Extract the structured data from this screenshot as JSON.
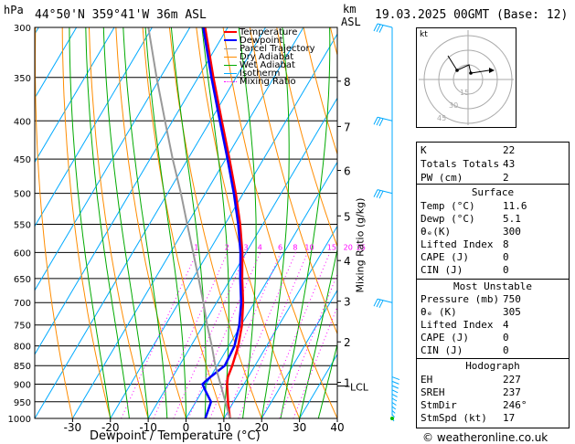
{
  "header": {
    "hpa_label": "hPa",
    "location": "44°50'N  359°41'W  36m  ASL",
    "km_label": "km",
    "asl_label": "ASL",
    "datetime": "19.03.2025  00GMT  (Base: 12)"
  },
  "legend": [
    {
      "label": "Temperature",
      "color": "#ff0000"
    },
    {
      "label": "Dewpoint",
      "color": "#0000ff"
    },
    {
      "label": "Parcel Trajectory",
      "color": "#999999"
    },
    {
      "label": "Dry Adiabat",
      "color": "#ff8c00"
    },
    {
      "label": "Wet Adiabat",
      "color": "#00aa00"
    },
    {
      "label": "Isotherm",
      "color": "#00aaff"
    },
    {
      "label": "Mixing Ratio",
      "color": "#ff00ff"
    }
  ],
  "chart_data": {
    "type": "line",
    "title": "",
    "xlabel": "Dewpoint / Temperature (°C)",
    "ylabel": "",
    "right_label": "Mixing Ratio (g/kg)",
    "xlim": [
      -40,
      40
    ],
    "ylim_pressure": [
      1000,
      300
    ],
    "x_ticks": [
      -30,
      -20,
      -10,
      0,
      10,
      20,
      30,
      40
    ],
    "pressure_ticks": [
      300,
      350,
      400,
      450,
      500,
      550,
      600,
      650,
      700,
      750,
      800,
      850,
      900,
      950,
      1000
    ],
    "km_ticks": [
      {
        "label": "8",
        "p": 354
      },
      {
        "label": "7",
        "p": 407
      },
      {
        "label": "6",
        "p": 466
      },
      {
        "label": "5",
        "p": 536
      },
      {
        "label": "4",
        "p": 615
      },
      {
        "label": "3",
        "p": 697
      },
      {
        "label": "2",
        "p": 790
      },
      {
        "label": "1",
        "p": 895
      }
    ],
    "lcl_label": "LCL",
    "lcl_p": 905,
    "mixing_ratio_labels": [
      "1",
      "2",
      "3",
      "4",
      "6",
      "8",
      "10",
      "15",
      "20",
      "25"
    ],
    "mixing_ratio_values": [
      1,
      2,
      3,
      4,
      6,
      8,
      10,
      15,
      20,
      25
    ],
    "series": [
      {
        "name": "Temperature",
        "color": "#ff0000",
        "points": [
          [
            1000,
            11.6
          ],
          [
            950,
            8.5
          ],
          [
            900,
            5.5
          ],
          [
            880,
            4.6
          ],
          [
            850,
            4
          ],
          [
            800,
            2.5
          ],
          [
            750,
            0.2
          ],
          [
            700,
            -3
          ],
          [
            650,
            -7
          ],
          [
            600,
            -11
          ],
          [
            550,
            -16
          ],
          [
            500,
            -22
          ],
          [
            450,
            -29
          ],
          [
            400,
            -37
          ],
          [
            350,
            -46
          ],
          [
            300,
            -56
          ]
        ]
      },
      {
        "name": "Dewpoint",
        "color": "#0000ff",
        "points": [
          [
            1000,
            5.1
          ],
          [
            950,
            4
          ],
          [
            920,
            1
          ],
          [
            900,
            -1
          ],
          [
            880,
            0
          ],
          [
            850,
            2
          ],
          [
            800,
            1.5
          ],
          [
            750,
            -0.5
          ],
          [
            700,
            -3.5
          ],
          [
            650,
            -7.5
          ],
          [
            600,
            -11.5
          ],
          [
            550,
            -16.5
          ],
          [
            500,
            -22.5
          ],
          [
            450,
            -29.5
          ],
          [
            400,
            -37.5
          ],
          [
            350,
            -46.5
          ],
          [
            300,
            -56.5
          ]
        ]
      },
      {
        "name": "Parcel Trajectory",
        "color": "#999999",
        "points": [
          [
            1000,
            11.6
          ],
          [
            905,
            4.2
          ],
          [
            850,
            -0.5
          ],
          [
            800,
            -4.5
          ],
          [
            750,
            -9
          ],
          [
            700,
            -13.5
          ],
          [
            650,
            -18.5
          ],
          [
            600,
            -24
          ],
          [
            550,
            -30
          ],
          [
            500,
            -36.5
          ],
          [
            450,
            -44
          ],
          [
            400,
            -52
          ],
          [
            350,
            -61
          ],
          [
            300,
            -71
          ]
        ]
      }
    ]
  },
  "hodograph": {
    "label": "kt",
    "rings": [
      "15",
      "30",
      "45"
    ]
  },
  "indices": {
    "k_label": "K",
    "k": "22",
    "tt_label": "Totals Totals",
    "tt": "43",
    "pw_label": "PW (cm)",
    "pw": "2"
  },
  "surface": {
    "title": "Surface",
    "temp_label": "Temp (°C)",
    "temp": "11.6",
    "dewp_label": "Dewp (°C)",
    "dewp": "5.1",
    "theta_label": "θₑ(K)",
    "theta": "300",
    "li_label": "Lifted Index",
    "li": "8",
    "cape_label": "CAPE (J)",
    "cape": "0",
    "cin_label": "CIN (J)",
    "cin": "0"
  },
  "most_unstable": {
    "title": "Most Unstable",
    "pressure_label": "Pressure (mb)",
    "pressure": "750",
    "theta_label": "θₑ (K)",
    "theta": "305",
    "li_label": "Lifted Index",
    "li": "4",
    "cape_label": "CAPE (J)",
    "cape": "0",
    "cin_label": "CIN (J)",
    "cin": "0"
  },
  "hodo_indices": {
    "title": "Hodograph",
    "eh_label": "EH",
    "eh": "227",
    "sreh_label": "SREH",
    "sreh": "237",
    "stmdir_label": "StmDir",
    "stmdir": "246°",
    "stmspd_label": "StmSpd (kt)",
    "stmspd": "17"
  },
  "footer": {
    "copyright": "© weatheronline.co.uk"
  },
  "colors": {
    "temperature": "#ff0000",
    "dewpoint": "#0000ff",
    "parcel": "#999999",
    "dry_adiabat": "#ff8c00",
    "wet_adiabat": "#00aa00",
    "isotherm": "#00aaff",
    "mixing_ratio": "#ff00ff",
    "wind": "#00aaff"
  }
}
